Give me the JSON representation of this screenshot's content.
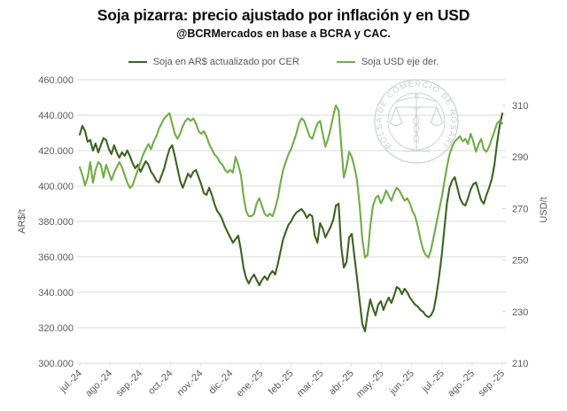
{
  "header": {
    "title": "Soja pizarra: precio ajustado por inflación y en USD",
    "subtitle": "@BCRMercados en base a BCRA y CAC."
  },
  "legend": {
    "items": [
      {
        "label": "Soja en AR$ actualizado por CER",
        "color": "#3c6322"
      },
      {
        "label": "Soja USD eje der.",
        "color": "#70ad47"
      }
    ]
  },
  "watermark": {
    "text": "BOLSA DE COMERCIO DE ROSARIO",
    "color": "#bcc3cd"
  },
  "chart_data": {
    "type": "line",
    "title": "Soja pizarra: precio ajustado por inflación y en USD",
    "subtitle": "@BCRMercados en base a BCRA y CAC.",
    "grid": "horizontal",
    "legend_position": "top",
    "x_labels": [
      "jul.-24",
      "ago.-24",
      "sep.-24",
      "oct.-24",
      "nov.-24",
      "dic.-24",
      "ene.-25",
      "feb.-25",
      "mar.-25",
      "abr.-25",
      "may.-25",
      "jun.-25",
      "jul.-25",
      "ago.-25",
      "sep.-25"
    ],
    "left_axis": {
      "label": "AR$/t",
      "min": 300000,
      "max": 460000,
      "tick_values": [
        460000,
        440000,
        420000,
        400000,
        380000,
        360000,
        340000,
        320000,
        300000
      ],
      "tick_labels": [
        "460.000",
        "440.000",
        "420.000",
        "400.000",
        "380.000",
        "360.000",
        "340.000",
        "320.000",
        "300.000"
      ]
    },
    "right_axis": {
      "label": "USD/t",
      "min": 210,
      "max": 310,
      "tick_values": [
        310,
        290,
        270,
        250,
        230,
        210
      ],
      "tick_labels": [
        "310",
        "290",
        "270",
        "250",
        "230",
        "210"
      ]
    },
    "series": [
      {
        "name": "Soja en AR$ actualizado por CER",
        "axis": "left",
        "color": "#3c6322",
        "values": [
          429000,
          434000,
          431000,
          425000,
          426000,
          420000,
          424000,
          419000,
          423000,
          427000,
          426000,
          421000,
          418000,
          423000,
          419000,
          416000,
          419000,
          417000,
          420000,
          417000,
          413000,
          410000,
          412000,
          408000,
          411000,
          414000,
          412000,
          408000,
          406000,
          403000,
          402000,
          406000,
          410000,
          416000,
          421000,
          423000,
          417000,
          410000,
          403000,
          399000,
          403000,
          407000,
          405000,
          408000,
          409000,
          405000,
          401000,
          396000,
          395000,
          399000,
          395000,
          390000,
          386000,
          384000,
          381000,
          377000,
          374000,
          371000,
          368000,
          370000,
          372000,
          364000,
          354000,
          348000,
          345000,
          348000,
          350000,
          347000,
          344000,
          347000,
          349000,
          347000,
          350000,
          352000,
          350000,
          356000,
          363000,
          370000,
          374000,
          378000,
          380000,
          383000,
          385000,
          386000,
          387000,
          385000,
          382000,
          384000,
          383000,
          372000,
          368000,
          379000,
          376000,
          371000,
          374000,
          377000,
          381000,
          389000,
          390000,
          366000,
          354000,
          357000,
          371000,
          373000,
          360000,
          348000,
          335000,
          322000,
          318000,
          328000,
          336000,
          331000,
          327000,
          333000,
          335000,
          330000,
          334000,
          337000,
          334000,
          338000,
          343000,
          342000,
          339000,
          342000,
          340000,
          337000,
          335000,
          333000,
          332000,
          330000,
          329000,
          327000,
          326000,
          327000,
          330000,
          338000,
          348000,
          360000,
          375000,
          390000,
          399000,
          403000,
          405000,
          399000,
          393000,
          390000,
          389000,
          393000,
          398000,
          401000,
          402000,
          397000,
          392000,
          390000,
          395000,
          399000,
          404000,
          412000,
          424000,
          434000,
          441000
        ]
      },
      {
        "name": "Soja USD eje der.",
        "axis": "right",
        "color": "#70ad47",
        "values": [
          286,
          283,
          279,
          282,
          288,
          280,
          285,
          288,
          287,
          282,
          287,
          284,
          281,
          284,
          286,
          288,
          286,
          283,
          280,
          278,
          279,
          282,
          285,
          288,
          291,
          293,
          295,
          293,
          296,
          298,
          301,
          303,
          305,
          306,
          307,
          303,
          299,
          297,
          299,
          302,
          304,
          305,
          304,
          305,
          303,
          300,
          299,
          300,
          298,
          295,
          293,
          291,
          290,
          288,
          287,
          285,
          284,
          285,
          284,
          290,
          287,
          283,
          275,
          269,
          267,
          267,
          268,
          272,
          274,
          271,
          268,
          267,
          268,
          267,
          270,
          274,
          280,
          285,
          288,
          291,
          293,
          296,
          299,
          303,
          305,
          304,
          301,
          298,
          297,
          300,
          303,
          304,
          299,
          294,
          297,
          301,
          306,
          310,
          308,
          295,
          282,
          286,
          292,
          290,
          286,
          281,
          271,
          258,
          251,
          252,
          263,
          271,
          274,
          275,
          272,
          274,
          277,
          275,
          273,
          276,
          278,
          277,
          275,
          273,
          274,
          272,
          269,
          267,
          263,
          258,
          254,
          252,
          251,
          254,
          259,
          264,
          269,
          274,
          280,
          286,
          291,
          294,
          296,
          297,
          298,
          296,
          297,
          295,
          299,
          296,
          292,
          295,
          297,
          293,
          292,
          294,
          297,
          300,
          303,
          304,
          303
        ]
      }
    ]
  }
}
